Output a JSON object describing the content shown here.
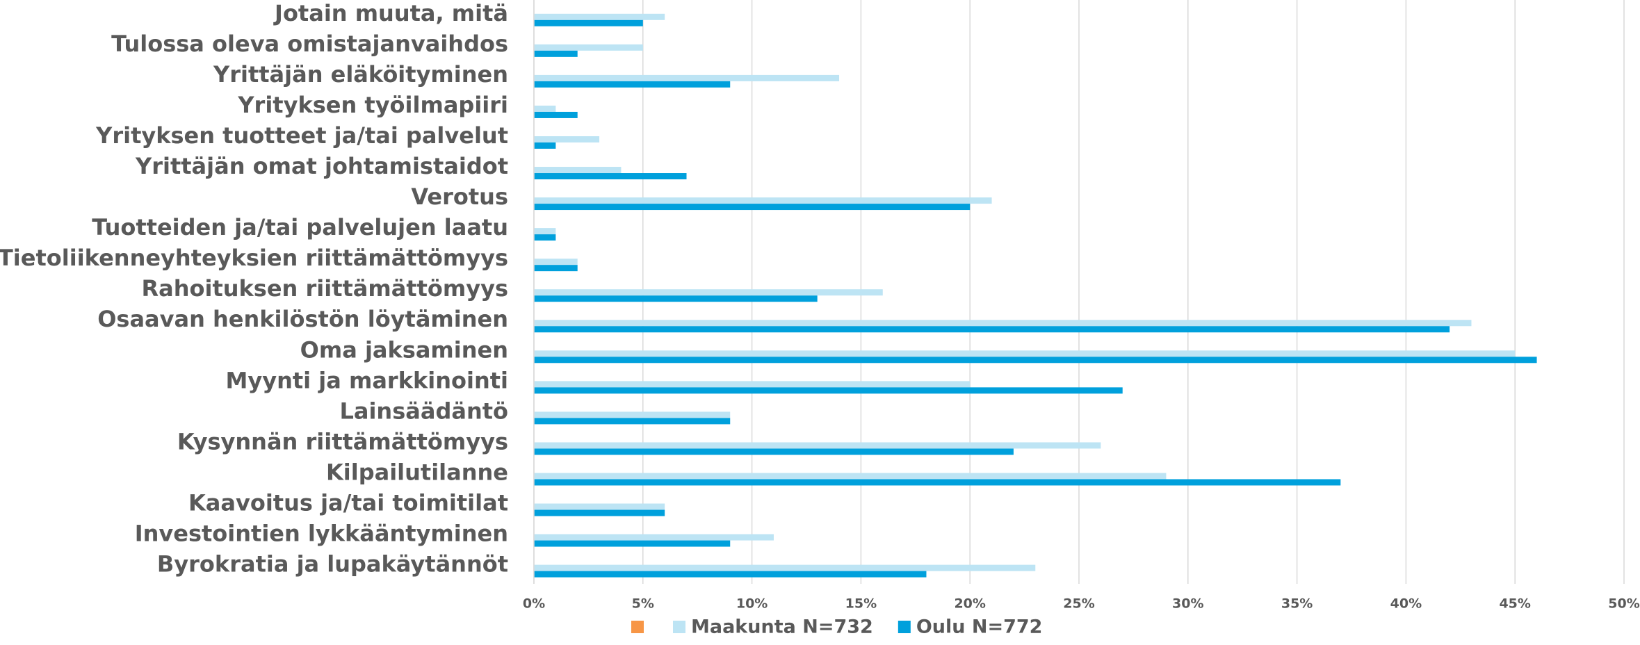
{
  "chart_data": {
    "type": "bar",
    "orientation": "horizontal",
    "categories": [
      "Jotain muuta, mitä",
      "Tulossa oleva omistajanvaihdos",
      "Yrittäjän eläköityminen",
      "Yrityksen työilmapiiri",
      "Yrityksen tuotteet ja/tai palvelut",
      "Yrittäjän omat johtamistaidot",
      "Verotus",
      "Tuotteiden ja/tai palvelujen laatu",
      "Tietoliikenneyhteyksien riittämättömyys",
      "Rahoituksen riittämättömyys",
      "Osaavan henkilöstön löytäminen",
      "Oma jaksaminen",
      "Myynti ja markkinointi",
      "Lainsäädäntö",
      "Kysynnän riittämättömyys",
      "Kilpailutilanne",
      "Kaavoitus ja/tai toimitilat",
      "Investointien lykkääntyminen",
      "Byrokratia ja lupakäytännöt"
    ],
    "series": [
      {
        "name": "Maakunta N=732",
        "color": "#bde4f4",
        "values": [
          6,
          5,
          14,
          1,
          3,
          4,
          21,
          1,
          2,
          16,
          43,
          45,
          20,
          9,
          26,
          29,
          6,
          11,
          23
        ]
      },
      {
        "name": "Oulu N=772",
        "color": "#00a0dc",
        "values": [
          5,
          2,
          9,
          2,
          1,
          7,
          20,
          1,
          2,
          13,
          42,
          46,
          27,
          9,
          22,
          37,
          6,
          9,
          18
        ]
      }
    ],
    "xlim": [
      0,
      50
    ],
    "xticks": [
      {
        "value": 0,
        "label": "0%"
      },
      {
        "value": 5,
        "label": "5%"
      },
      {
        "value": 10,
        "label": "10%"
      },
      {
        "value": 15,
        "label": "15%"
      },
      {
        "value": 20,
        "label": "20%"
      },
      {
        "value": 25,
        "label": "25%"
      },
      {
        "value": 30,
        "label": "30%"
      },
      {
        "value": 35,
        "label": "35%"
      },
      {
        "value": 40,
        "label": "40%"
      },
      {
        "value": 45,
        "label": "45%"
      },
      {
        "value": 50,
        "label": "50%"
      }
    ],
    "grid": true,
    "legend": "bottom"
  }
}
